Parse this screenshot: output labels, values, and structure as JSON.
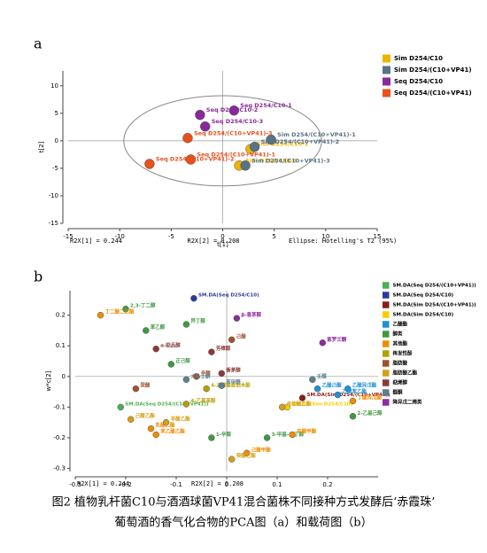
{
  "caption": [
    "图2 植物乳杆菌C10与酒酒球菌VP41混合菌株不同接种方式发酵后‘赤霞珠’",
    "葡萄酒的香气化合物的PCA图（a）和载荷图（b）"
  ],
  "chart_data": [
    {
      "type": "scatter",
      "panel_label": "a",
      "xlabel": "t[1]",
      "ylabel": "t[2]",
      "xlim": [
        -15,
        15
      ],
      "ylim": [
        -15,
        12.7
      ],
      "xticks": [
        -15,
        -10,
        -5,
        0,
        5,
        10,
        15
      ],
      "yticks": [
        -15,
        -10,
        -5,
        0,
        5,
        10
      ],
      "ellipse_radii": [
        9.6,
        8.2
      ],
      "footer": [
        "R2X[1] = 0.244",
        "R2X[2] = 0.208",
        "Ellipse: Hotelling's T2 (95%)"
      ],
      "series": [
        {
          "name": "Sim D254/C10",
          "color": "#f0b400",
          "x": [
            2.7,
            1.6
          ],
          "values": [
            -1.5,
            -4.5
          ],
          "labels": [
            "Sim D254/C10-1",
            "Sim D254/C10-3"
          ]
        },
        {
          "name": "Sim D254/(C10+VP41)",
          "color": "#5a7384",
          "x": [
            4.7,
            3.1,
            2.2
          ],
          "values": [
            0.2,
            -1.1,
            -4.5
          ],
          "labels": [
            "Sim D254/(C10+VP41)-1",
            "Sim D254/(C10+VP41)-2",
            "Sim D254/(C10+VP41)-3"
          ]
        },
        {
          "name": "Seq D254/C10",
          "color": "#8a2a9a",
          "x": [
            1.1,
            -2.2,
            -1.7
          ],
          "values": [
            5.5,
            4.7,
            2.6
          ],
          "labels": [
            "Seq D254/C10-1",
            "Seq D254/C10-2",
            "Seq D254/C10-3"
          ]
        },
        {
          "name": "Seq D254/(C10+VP41)",
          "color": "#e8501c",
          "x": [
            -3.1,
            -7.1,
            -3.4
          ],
          "values": [
            -3.4,
            -4.2,
            0.5
          ],
          "labels": [
            "Seq D254/(C10+VP41)-1",
            "Seq D254/(C10+VP41)-2",
            "Seq D254/(C10+VP41)-3"
          ]
        }
      ]
    },
    {
      "type": "scatter",
      "panel_label": "b",
      "ylabel": "w*c[2]",
      "xlim": [
        -0.3,
        0.3
      ],
      "ylim": [
        -0.31,
        0.28
      ],
      "xticks": [
        -0.3,
        -0.2,
        -0.1,
        0,
        0.1,
        0.2
      ],
      "yticks": [
        -0.3,
        -0.2,
        -0.1,
        0,
        0.1,
        0.2
      ],
      "footer": [
        "R2X[1] = 0.244",
        "R2X[2] = 0.208"
      ],
      "series": [
        {
          "name": "SM.DA(Seq D254/(C10+VP41))",
          "color": "#4caf50",
          "x": [
            -0.21
          ],
          "values": [
            -0.1
          ],
          "labels": [
            "SM.DA(Seq D254/(C10+VP41))"
          ]
        },
        {
          "name": "SM.DA(Seq D254/C10)",
          "color": "#2b3a9a",
          "x": [
            -0.065
          ],
          "values": [
            0.255
          ],
          "labels": [
            "SM.DA(Seq D254/C10)"
          ]
        },
        {
          "name": "SM.DA(Sim D254/(C10+VP41))",
          "color": "#8b1a1a",
          "x": [
            0.15
          ],
          "values": [
            -0.07
          ],
          "labels": [
            "SM.DA(Sim D254/(C10+VP41))"
          ]
        },
        {
          "name": "SM.DA(Sim D254/C10)",
          "color": "#f5d000",
          "x": [
            0.12
          ],
          "values": [
            -0.1
          ],
          "labels": [
            "SM.DA(Sim D254/C10)"
          ]
        },
        {
          "name": "乙酸酯",
          "color": "#1e90d8",
          "x": [
            0.24,
            0.18,
            0.22
          ],
          "values": [
            -0.04,
            -0.04,
            -0.06
          ],
          "labels": [
            "乙酸异戊酯",
            "乙酸己酯",
            "乙酸苯乙酯"
          ]
        },
        {
          "name": "醇类",
          "color": "#3f9a3f",
          "x": [
            -0.2,
            -0.16,
            -0.08,
            -0.11,
            -0.03,
            0.08,
            0.25
          ],
          "values": [
            0.22,
            0.15,
            0.17,
            0.04,
            -0.2,
            -0.2,
            -0.13
          ],
          "labels": [
            "2,3-丁二醇",
            "苯乙醇",
            "异丁醇",
            "正己醇",
            "1-辛醇",
            "3-甲基-1-丁醇",
            "2-乙基己醇"
          ]
        },
        {
          "name": "其他酯",
          "color": "#f08c00",
          "x": [
            -0.25,
            -0.15,
            -0.14,
            0.04,
            0.13,
            0.25
          ],
          "values": [
            0.2,
            -0.17,
            -0.19,
            -0.25,
            -0.19,
            -0.08
          ],
          "labels": [
            "丁二酸二乙酯",
            "乳酸乙酯",
            "苯乙酸乙酯",
            "己酸甲酯",
            "辛酸甲酯",
            "丁酸异戊酯"
          ]
        },
        {
          "name": "挥发性酚",
          "color": "#b8a000",
          "x": [
            -0.04,
            -0.08
          ],
          "values": [
            -0.04,
            -0.09
          ],
          "labels": [
            "4-乙烯基愈创木酚",
            "4-乙基苯酚"
          ]
        },
        {
          "name": "脂肪酸",
          "color": "#a0522d",
          "x": [
            0.01,
            -0.06,
            -0.18
          ],
          "values": [
            0.12,
            0,
            -0.04
          ],
          "labels": [
            "己酸",
            "辛酸",
            "癸酸"
          ]
        },
        {
          "name": "脂肪酸乙酯",
          "color": "#d4a017",
          "x": [
            -0.19,
            -0.12,
            0.01,
            0.11
          ],
          "values": [
            -0.14,
            -0.15,
            -0.27,
            -0.1
          ],
          "labels": [
            "己酸乙酯",
            "辛酸乙酯",
            "癸酸乙酯",
            "月桂酸乙酯"
          ]
        },
        {
          "name": "萜烯醇",
          "color": "#8b3a3a",
          "x": [
            -0.03,
            -0.01,
            -0.14
          ],
          "values": [
            0.08,
            0.01,
            0.09
          ],
          "labels": [
            "芳樟醇",
            "香茅醇",
            "α-萜品醇"
          ]
        },
        {
          "name": "醛酮",
          "color": "#5f7f8f",
          "x": [
            -0.01,
            0.17,
            -0.08
          ],
          "values": [
            -0.03,
            -0.01,
            -0.01
          ],
          "labels": [
            "苯甲醛",
            "壬醛",
            "大马士酮"
          ]
        },
        {
          "name": "降异戊二烯类",
          "color": "#8e2aa0",
          "x": [
            0.19,
            0.02
          ],
          "values": [
            0.11,
            0.19
          ],
          "labels": [
            "紫罗兰酮",
            "β-香茅醇"
          ]
        }
      ]
    }
  ]
}
